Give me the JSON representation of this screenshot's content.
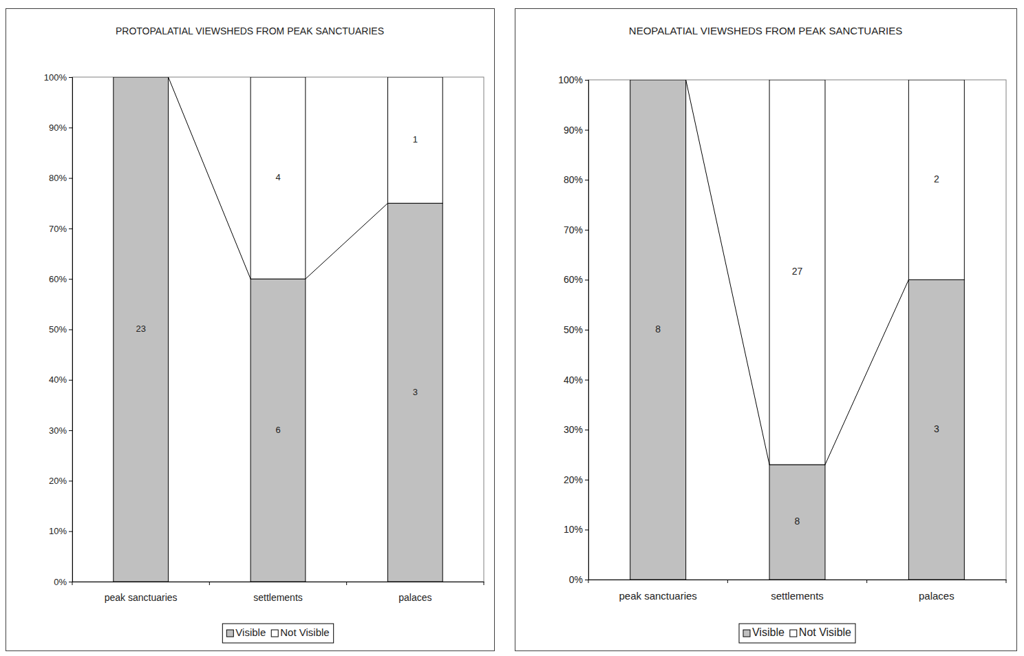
{
  "chart_data": [
    {
      "type": "bar",
      "stacked": true,
      "title": "PROTOPALATIAL VIEWSHEDS FROM PEAK SANCTUARIES",
      "categories": [
        "peak sanctuaries",
        "settlements",
        "palaces"
      ],
      "series": [
        {
          "name": "Visible",
          "color": "#c0c0c0",
          "values": [
            100,
            60,
            75
          ],
          "counts": [
            23,
            6,
            3
          ]
        },
        {
          "name": "Not Visible",
          "color": "#ffffff",
          "values": [
            0,
            40,
            25
          ],
          "counts": [
            null,
            4,
            1
          ]
        }
      ],
      "ylim": [
        0,
        100
      ],
      "yticks": [
        {
          "value": 0,
          "label": "0%"
        },
        {
          "value": 10,
          "label": "10%"
        },
        {
          "value": 20,
          "label": "20%"
        },
        {
          "value": 30,
          "label": "30%"
        },
        {
          "value": 40,
          "label": "40%"
        },
        {
          "value": 50,
          "label": "50%"
        },
        {
          "value": 60,
          "label": "60%"
        },
        {
          "value": 70,
          "label": "70%"
        },
        {
          "value": 80,
          "label": "80%"
        },
        {
          "value": 90,
          "label": "90%"
        },
        {
          "value": 100,
          "label": "100%"
        }
      ],
      "grid": false,
      "legend": "bottom"
    },
    {
      "type": "bar",
      "stacked": true,
      "title": "NEOPALATIAL VIEWSHEDS FROM PEAK SANCTUARIES",
      "categories": [
        "peak sanctuaries",
        "settlements",
        "palaces"
      ],
      "series": [
        {
          "name": "Visible",
          "color": "#c0c0c0",
          "values": [
            100,
            23,
            60
          ],
          "counts": [
            8,
            8,
            3
          ]
        },
        {
          "name": "Not Visible",
          "color": "#ffffff",
          "values": [
            0,
            77,
            40
          ],
          "counts": [
            null,
            27,
            2
          ]
        }
      ],
      "ylim": [
        0,
        100
      ],
      "yticks": [
        {
          "value": 0,
          "label": "0%"
        },
        {
          "value": 10,
          "label": "10%"
        },
        {
          "value": 20,
          "label": "20%"
        },
        {
          "value": 30,
          "label": "30%"
        },
        {
          "value": 40,
          "label": "40%"
        },
        {
          "value": 50,
          "label": "50%"
        },
        {
          "value": 60,
          "label": "60%"
        },
        {
          "value": 70,
          "label": "70%"
        },
        {
          "value": 80,
          "label": "80%"
        },
        {
          "value": 90,
          "label": "90%"
        },
        {
          "value": 100,
          "label": "100%"
        }
      ],
      "grid": false,
      "legend": "bottom"
    }
  ]
}
